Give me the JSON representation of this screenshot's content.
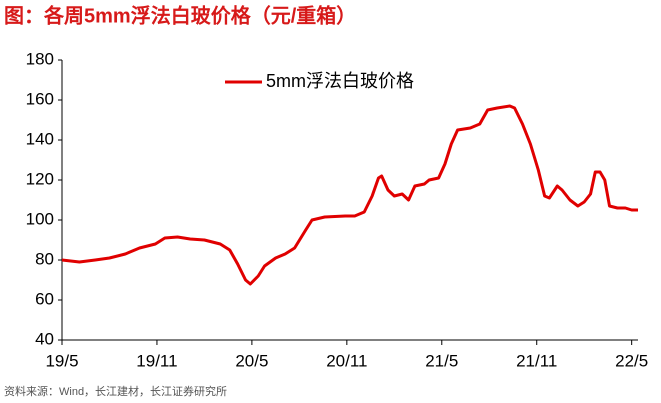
{
  "chart_data": {
    "type": "line",
    "title": "图：各周5mm浮法白玻价格（元/重箱）",
    "source": "资料来源：Wind，长江建材，长江证券研究所",
    "x": [
      0,
      1.1,
      2.1,
      3.0,
      4.0,
      4.9,
      5.9,
      6.5,
      7.3,
      8.1,
      9.0,
      10.0,
      10.6,
      11.1,
      11.6,
      11.9,
      12.4,
      12.8,
      13.5,
      14.1,
      14.7,
      15.4,
      15.8,
      16.6,
      17.9,
      18.5,
      19.1,
      19.6,
      20.0,
      20.2,
      20.6,
      21.0,
      21.5,
      21.9,
      22.3,
      22.9,
      23.2,
      23.8,
      24.2,
      24.6,
      25.0,
      25.8,
      26.4,
      26.9,
      27.5,
      28.3,
      28.6,
      29.1,
      29.6,
      30.1,
      30.5,
      30.8,
      31.3,
      31.6,
      32.1,
      32.6,
      33.0,
      33.4,
      33.7,
      34.0,
      34.3,
      34.6,
      35.1,
      35.6,
      36.0,
      36.4
    ],
    "series": [
      {
        "name": "5mm浮法白玻价格",
        "color": "#e00000",
        "values": [
          80,
          79,
          80,
          81,
          83,
          86,
          88,
          91,
          91.5,
          90.5,
          90,
          88,
          85,
          78,
          70,
          68,
          72,
          77,
          81,
          83,
          86,
          95,
          100,
          101.5,
          102,
          102,
          104,
          112,
          121,
          122,
          115,
          112,
          113,
          110,
          117,
          118,
          120,
          121,
          128,
          138,
          145,
          146,
          148,
          155,
          156,
          157,
          156,
          148,
          138,
          125,
          112,
          111,
          117,
          115,
          110,
          107,
          109,
          113,
          124,
          124,
          120,
          107,
          106,
          106,
          105,
          105
        ]
      }
    ],
    "xlim": [
      0,
      36.4
    ],
    "xticks": [
      {
        "value": 0,
        "label": "19/5"
      },
      {
        "value": 6,
        "label": "19/11"
      },
      {
        "value": 12,
        "label": "20/5"
      },
      {
        "value": 18,
        "label": "20/11"
      },
      {
        "value": 24,
        "label": "21/5"
      },
      {
        "value": 30,
        "label": "21/11"
      },
      {
        "value": 36,
        "label": "22/5"
      }
    ],
    "ylim": [
      40,
      180
    ],
    "yticks": [
      40,
      60,
      80,
      100,
      120,
      140,
      160,
      180
    ],
    "grid": false,
    "legend": "top"
  }
}
